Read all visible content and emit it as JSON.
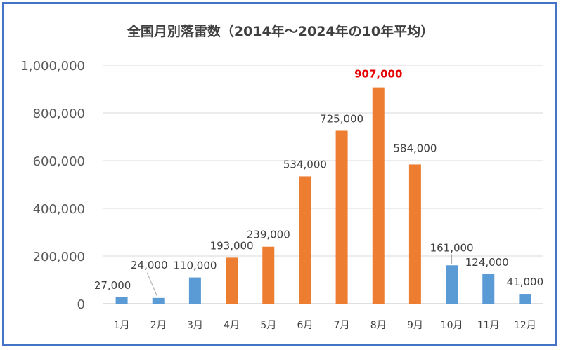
{
  "chart_data": {
    "type": "bar",
    "title": "全国月別落雷数（2014年～2024年の10年平均）",
    "categories": [
      "1月",
      "2月",
      "3月",
      "4月",
      "5月",
      "6月",
      "7月",
      "8月",
      "9月",
      "10月",
      "11月",
      "12月"
    ],
    "values": [
      27000,
      24000,
      110000,
      193000,
      239000,
      534000,
      725000,
      907000,
      584000,
      161000,
      124000,
      41000
    ],
    "data_labels": [
      "27,000",
      "24,000",
      "110,000",
      "193,000",
      "239,000",
      "534,000",
      "725,000",
      "907,000",
      "584,000",
      "161,000",
      "124,000",
      "41,000"
    ],
    "bar_colors": [
      "#5b9bd5",
      "#5b9bd5",
      "#5b9bd5",
      "#ed7d31",
      "#ed7d31",
      "#ed7d31",
      "#ed7d31",
      "#ed7d31",
      "#ed7d31",
      "#5b9bd5",
      "#5b9bd5",
      "#5b9bd5"
    ],
    "highlight_index": 7,
    "highlight_color": "#e60000",
    "ylim": [
      0,
      1000000
    ],
    "yticks": [
      0,
      200000,
      400000,
      600000,
      800000,
      1000000
    ],
    "ytick_labels": [
      "0",
      "200,000",
      "400,000",
      "600,000",
      "800,000",
      "1,000,000"
    ],
    "grid": true,
    "xlabel": "",
    "ylabel": ""
  }
}
